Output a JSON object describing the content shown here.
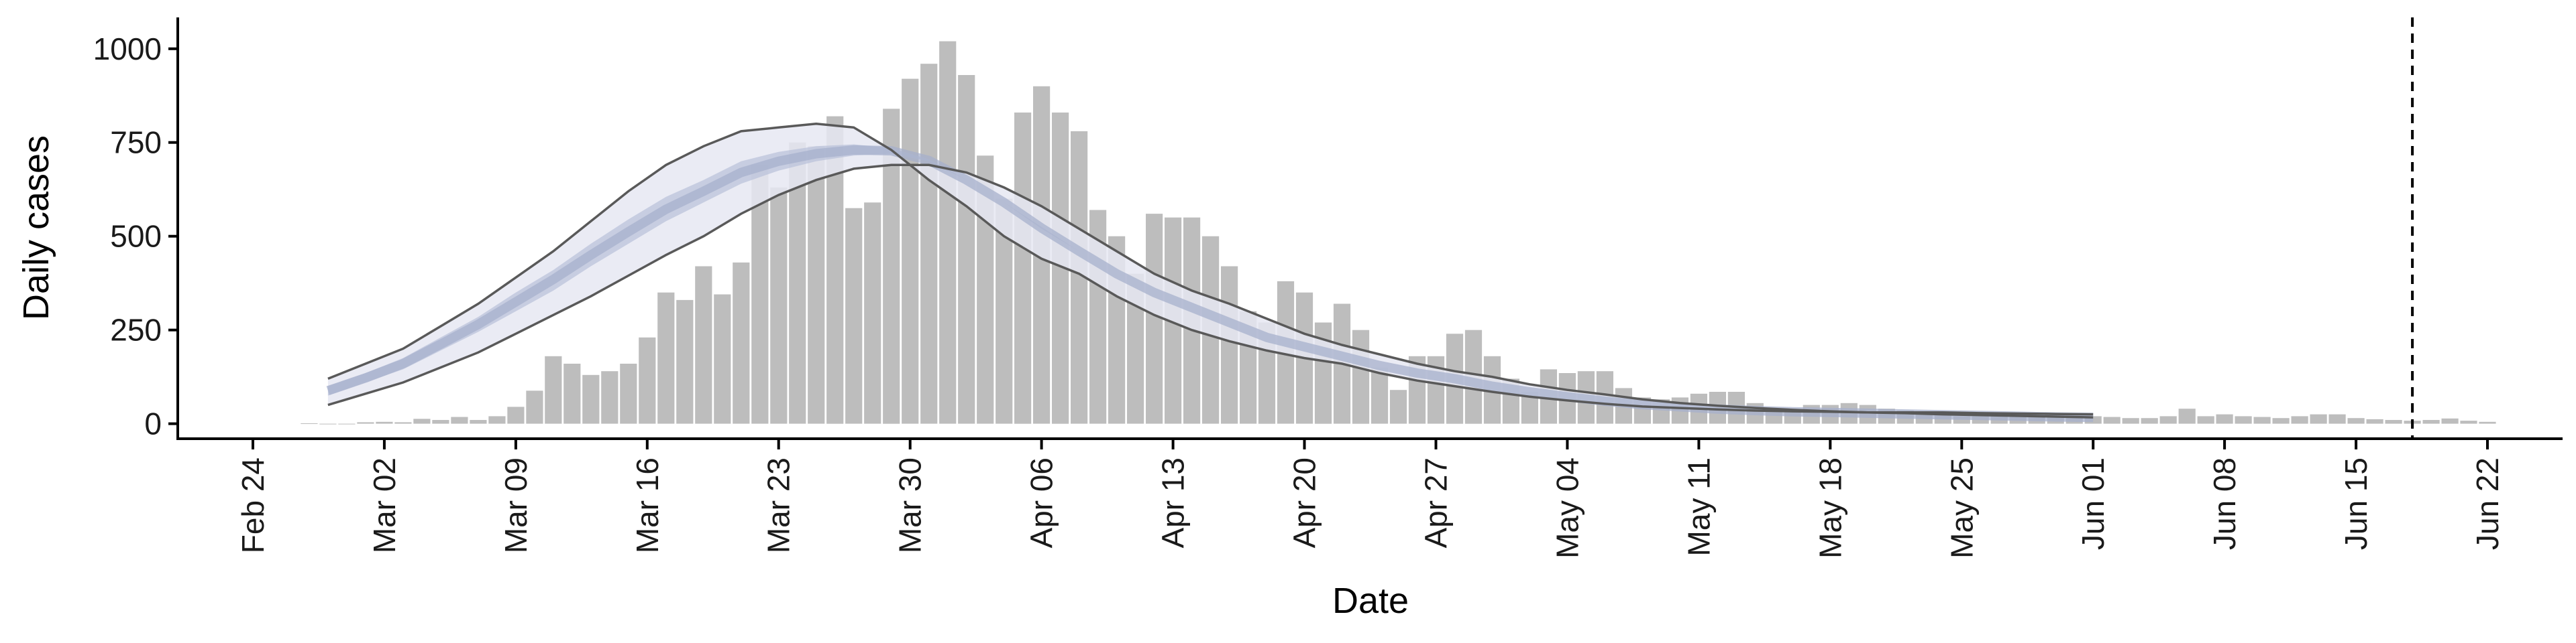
{
  "chart_data": {
    "type": "bar",
    "title": "",
    "xlabel": "Date",
    "ylabel": "Daily cases",
    "x_axis": {
      "type": "date",
      "range": [
        "2020-02-20",
        "2020-06-26"
      ],
      "ticks": [
        "2020-02-24",
        "2020-03-02",
        "2020-03-09",
        "2020-03-16",
        "2020-03-23",
        "2020-03-30",
        "2020-04-06",
        "2020-04-13",
        "2020-04-20",
        "2020-04-27",
        "2020-05-04",
        "2020-05-11",
        "2020-05-18",
        "2020-05-25",
        "2020-06-01",
        "2020-06-08",
        "2020-06-15",
        "2020-06-22"
      ],
      "tick_labels": [
        "Feb 24",
        "Mar 02",
        "Mar 09",
        "Mar 16",
        "Mar 23",
        "Mar 30",
        "Apr 06",
        "Apr 13",
        "Apr 20",
        "Apr 27",
        "May 04",
        "May 11",
        "May 18",
        "May 25",
        "Jun 01",
        "Jun 08",
        "Jun 15",
        "Jun 22"
      ]
    },
    "y_axis": {
      "range": [
        -40,
        1080
      ],
      "ticks": [
        0,
        250,
        500,
        750,
        1000
      ],
      "tick_labels": [
        "0",
        "250",
        "500",
        "750",
        "1000"
      ]
    },
    "grid": false,
    "legend": "none",
    "vline": {
      "date": "2020-06-18",
      "style": "dashed"
    },
    "bars": {
      "name": "Daily cases",
      "start_date": "2020-02-27",
      "values": [
        1,
        0,
        0,
        4,
        5,
        4,
        13,
        10,
        18,
        10,
        20,
        45,
        88,
        180,
        160,
        130,
        140,
        160,
        230,
        350,
        330,
        420,
        345,
        430,
        690,
        630,
        750,
        740,
        820,
        575,
        590,
        840,
        920,
        960,
        1020,
        930,
        715,
        600,
        830,
        900,
        830,
        780,
        570,
        500,
        400,
        560,
        550,
        550,
        500,
        420,
        300,
        270,
        380,
        350,
        270,
        320,
        250,
        150,
        90,
        180,
        180,
        240,
        250,
        180,
        120,
        85,
        145,
        135,
        140,
        140,
        95,
        70,
        65,
        70,
        80,
        85,
        85,
        55,
        40,
        35,
        50,
        50,
        55,
        50,
        40,
        35,
        25,
        30,
        20,
        20,
        25,
        30,
        28,
        25,
        22,
        20,
        18,
        15,
        15,
        20,
        40,
        20,
        25,
        20,
        18,
        15,
        20,
        25,
        25,
        15,
        12,
        10,
        8,
        10,
        14,
        8,
        5
      ]
    },
    "ribbon": {
      "start_date": "2020-02-28",
      "dates_step_days": 2,
      "outer_lower": [
        50,
        80,
        110,
        150,
        190,
        240,
        290,
        340,
        395,
        450,
        500,
        560,
        610,
        650,
        680,
        690,
        690,
        670,
        630,
        580,
        520,
        460,
        400,
        355,
        320,
        280,
        240,
        210,
        185,
        160,
        140,
        125,
        105,
        90,
        78,
        65,
        55,
        48,
        42,
        37,
        33,
        30,
        28,
        25,
        23,
        21,
        19,
        17
      ],
      "outer_upper": [
        120,
        160,
        200,
        260,
        320,
        390,
        460,
        540,
        620,
        690,
        740,
        780,
        790,
        800,
        790,
        730,
        650,
        580,
        500,
        440,
        400,
        340,
        290,
        250,
        220,
        195,
        175,
        160,
        135,
        115,
        100,
        85,
        72,
        62,
        53,
        46,
        42,
        38,
        35,
        33,
        32,
        30,
        30,
        30,
        28,
        27,
        26,
        25
      ],
      "inner_lower": [
        75,
        110,
        145,
        195,
        245,
        300,
        355,
        420,
        480,
        540,
        590,
        640,
        675,
        700,
        715,
        720,
        700,
        650,
        590,
        520,
        460,
        400,
        350,
        310,
        270,
        230,
        205,
        180,
        155,
        135,
        120,
        100,
        85,
        72,
        60,
        51,
        45,
        39,
        35,
        32,
        30,
        28,
        26,
        24,
        22,
        20,
        18,
        17
      ],
      "inner_upper": [
        100,
        135,
        175,
        230,
        285,
        350,
        410,
        480,
        545,
        605,
        650,
        700,
        725,
        740,
        745,
        735,
        705,
        650,
        590,
        525,
        460,
        400,
        350,
        310,
        270,
        230,
        205,
        180,
        155,
        135,
        120,
        100,
        85,
        72,
        60,
        51,
        45,
        39,
        35,
        32,
        30,
        28,
        26,
        24,
        22,
        20,
        18,
        17
      ],
      "median": [
        88,
        122,
        160,
        212,
        265,
        325,
        385,
        450,
        512,
        572,
        620,
        670,
        700,
        720,
        730,
        728,
        702,
        650,
        590,
        522,
        460,
        400,
        350,
        310,
        270,
        230,
        205,
        180,
        155,
        135,
        120,
        100,
        85,
        72,
        60,
        51,
        45,
        39,
        35,
        32,
        30,
        28,
        26,
        24,
        22,
        20,
        18,
        17
      ]
    },
    "colors": {
      "bars": "#bdbdbd",
      "outer_band": "#e6e8f2",
      "inner_band": "#b8c0d8",
      "median": "#a7b0cc",
      "band_edges": "#595959",
      "axis": "#000000",
      "vline": "#000000"
    }
  }
}
